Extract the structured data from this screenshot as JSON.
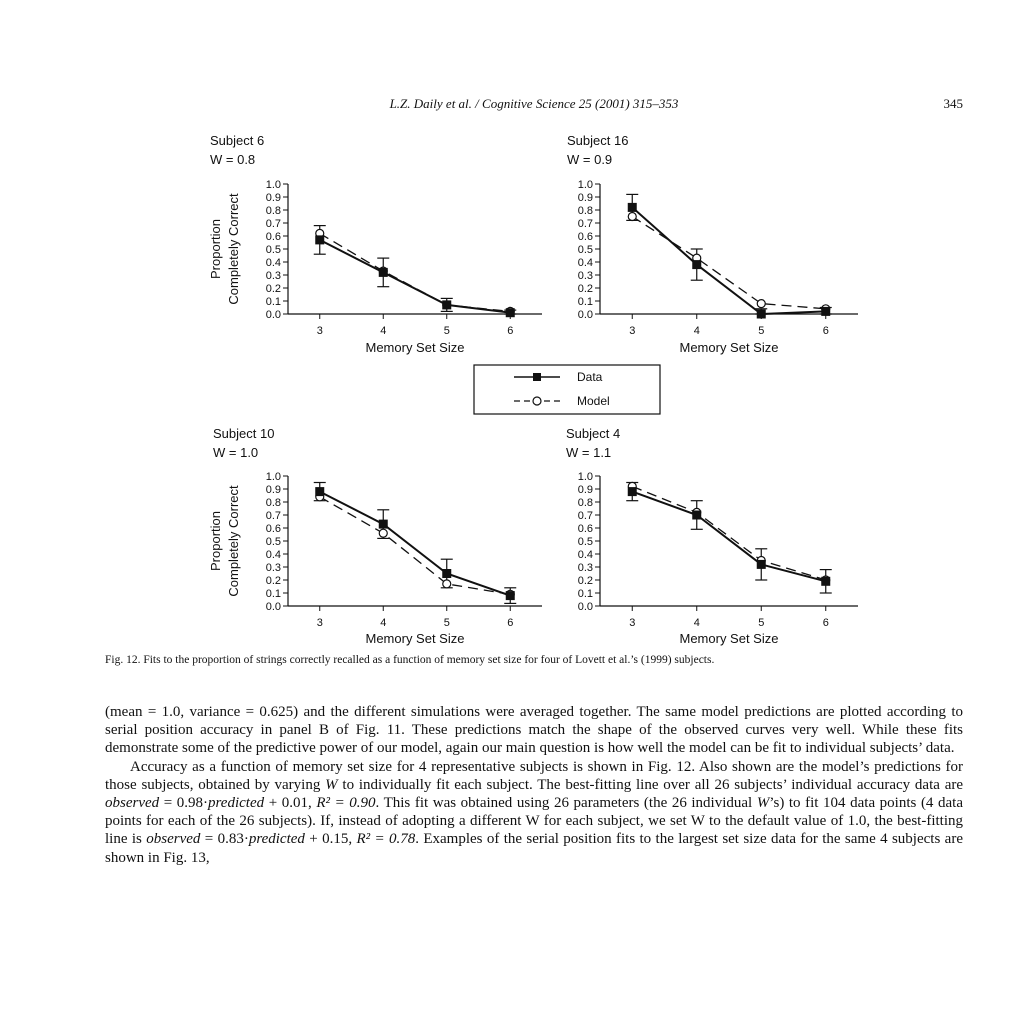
{
  "running_head": {
    "journal": "L.Z. Daily et al. / Cognitive Science 25 (2001) 315–353",
    "page_number": "345"
  },
  "legend": {
    "data_label": "Data",
    "model_label": "Model"
  },
  "chart_data": [
    {
      "type": "line",
      "title": "Subject 6",
      "subtitle": "W = 0.8",
      "xlabel": "Memory Set Size",
      "ylabel_line1": "Proportion",
      "ylabel_line2": "Completely Correct",
      "x": [
        3,
        4,
        5,
        6
      ],
      "xlim": [
        2.5,
        6.5
      ],
      "ylim": [
        0,
        1
      ],
      "yticks": [
        "0.0",
        "0.1",
        "0.2",
        "0.3",
        "0.4",
        "0.5",
        "0.6",
        "0.7",
        "0.8",
        "0.9",
        "1.0"
      ],
      "show_ylabel": true,
      "series": [
        {
          "name": "Data",
          "values": [
            0.57,
            0.32,
            0.07,
            0.01
          ],
          "errors": [
            0.11,
            0.11,
            0.05,
            0.02
          ]
        },
        {
          "name": "Model",
          "values": [
            0.62,
            0.33,
            0.07,
            0.02
          ]
        }
      ]
    },
    {
      "type": "line",
      "title": "Subject 16",
      "subtitle": "W = 0.9",
      "xlabel": "Memory Set Size",
      "x": [
        3,
        4,
        5,
        6
      ],
      "xlim": [
        2.5,
        6.5
      ],
      "ylim": [
        0,
        1
      ],
      "yticks": [
        "0.0",
        "0.1",
        "0.2",
        "0.3",
        "0.4",
        "0.5",
        "0.6",
        "0.7",
        "0.8",
        "0.9",
        "1.0"
      ],
      "show_ylabel": false,
      "series": [
        {
          "name": "Data",
          "values": [
            0.82,
            0.38,
            0.0,
            0.02
          ],
          "errors": [
            0.1,
            0.12,
            0.04,
            0.03
          ]
        },
        {
          "name": "Model",
          "values": [
            0.75,
            0.43,
            0.08,
            0.04
          ]
        }
      ]
    },
    {
      "type": "line",
      "title": "Subject 10",
      "subtitle": "W = 1.0",
      "xlabel": "Memory Set Size",
      "ylabel_line1": "Proportion",
      "ylabel_line2": "Completely Correct",
      "x": [
        3,
        4,
        5,
        6
      ],
      "xlim": [
        2.5,
        6.5
      ],
      "ylim": [
        0,
        1
      ],
      "yticks": [
        "0.0",
        "0.1",
        "0.2",
        "0.3",
        "0.4",
        "0.5",
        "0.6",
        "0.7",
        "0.8",
        "0.9",
        "1.0"
      ],
      "show_ylabel": true,
      "series": [
        {
          "name": "Data",
          "values": [
            0.88,
            0.63,
            0.25,
            0.08
          ],
          "errors": [
            0.07,
            0.11,
            0.11,
            0.06
          ]
        },
        {
          "name": "Model",
          "values": [
            0.84,
            0.56,
            0.17,
            0.09
          ]
        }
      ]
    },
    {
      "type": "line",
      "title": "Subject 4",
      "subtitle": "W = 1.1",
      "xlabel": "Memory Set Size",
      "x": [
        3,
        4,
        5,
        6
      ],
      "xlim": [
        2.5,
        6.5
      ],
      "ylim": [
        0,
        1
      ],
      "yticks": [
        "0.0",
        "0.1",
        "0.2",
        "0.3",
        "0.4",
        "0.5",
        "0.6",
        "0.7",
        "0.8",
        "0.9",
        "1.0"
      ],
      "show_ylabel": false,
      "series": [
        {
          "name": "Data",
          "values": [
            0.88,
            0.7,
            0.32,
            0.19
          ],
          "errors": [
            0.07,
            0.11,
            0.12,
            0.09
          ]
        },
        {
          "name": "Model",
          "values": [
            0.92,
            0.72,
            0.35,
            0.2
          ]
        }
      ]
    }
  ],
  "caption": "Fig. 12. Fits to the proportion of strings correctly recalled as a function of memory set size for four of Lovett et al.’s (1999) subjects.",
  "body": {
    "p1": "(mean = 1.0, variance = 0.625) and the different simulations were averaged together. The same model predictions are plotted according to serial position accuracy in panel B of Fig. 11. These predictions match the shape of the observed curves very well. While these fits demonstrate some of the predictive power of our model, again our main question is how well the model can be fit to individual subjects’ data.",
    "p2_a": "Accuracy as a function of memory set size for 4 representative subjects is shown in Fig. 12. Also shown are the model’s predictions for those subjects, obtained by varying ",
    "p2_w1": "W",
    "p2_b": " to individually fit each subject. The best-fitting line over all 26 subjects’ individual accuracy data are ",
    "p2_obs1": "observed",
    "p2_c": " = 0.98·",
    "p2_pred1": "predicted",
    "p2_d": " + 0.01, ",
    "p2_r2a": "R² = 0.90",
    "p2_e": ". This fit was obtained using 26 parameters (the 26 individual ",
    "p2_w2": "W",
    "p2_f": "’s) to fit 104 data points (4 data points for each of the 26 subjects). If, instead of adopting a different W for each subject, we set W to the default value of 1.0, the best-fitting line is ",
    "p2_obs2": "observed",
    "p2_g": " = 0.83·",
    "p2_pred2": "predicted",
    "p2_h": " + 0.15, ",
    "p2_r2b": "R² = 0.78",
    "p2_i": ". Examples of the serial position fits to the largest set size data for the same 4 subjects are shown in Fig. 13,"
  }
}
